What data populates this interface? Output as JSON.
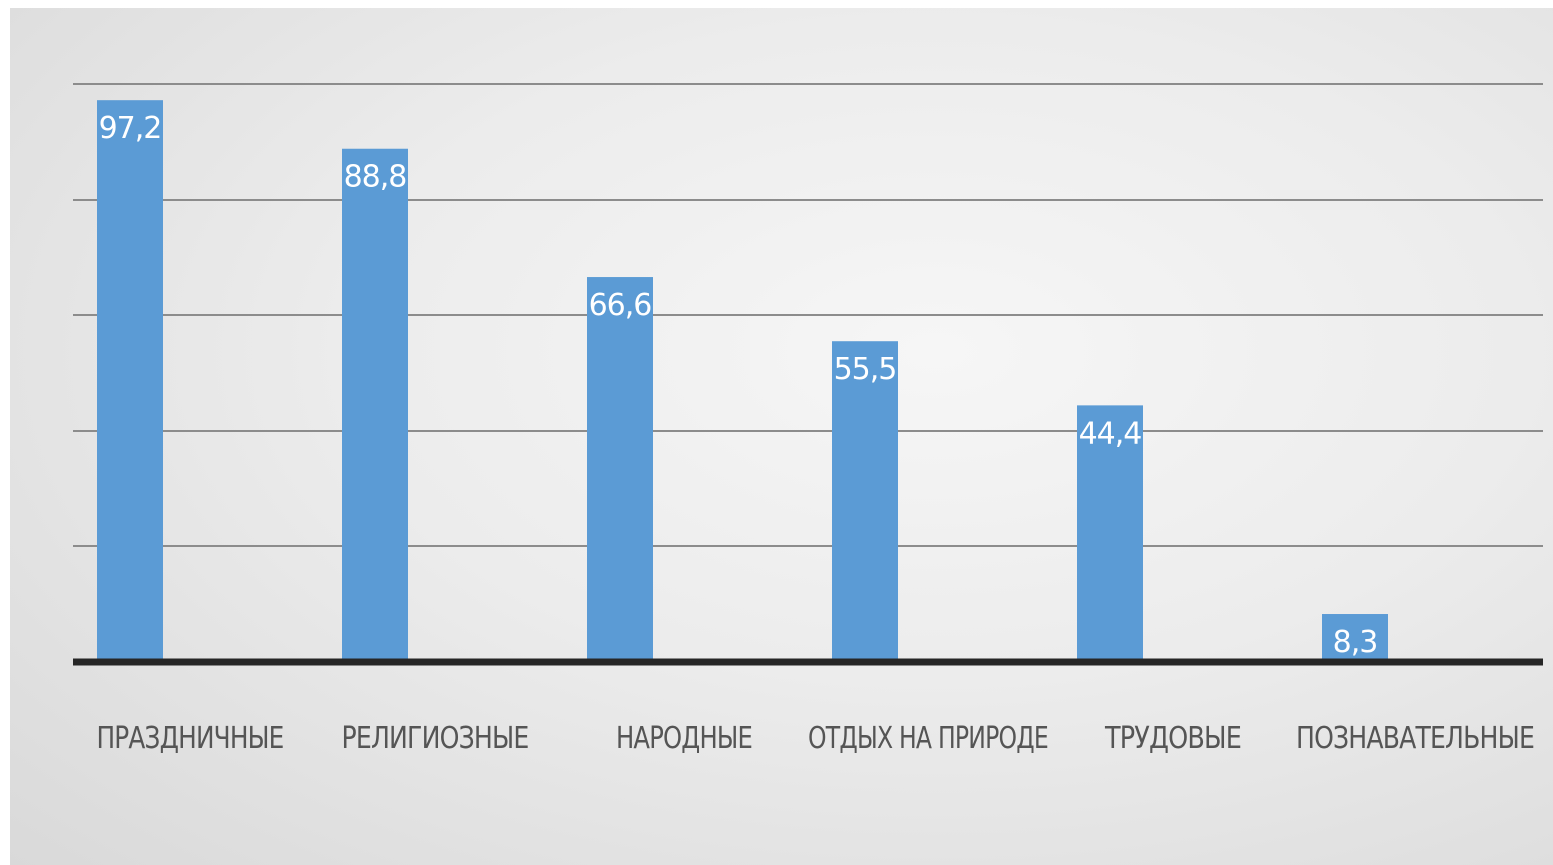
{
  "chart_data": {
    "type": "bar",
    "categories": [
      "ПРАЗДНИЧНЫЕ",
      "РЕЛИГИОЗНЫЕ",
      "НАРОДНЫЕ",
      "ОТДЫХ НА ПРИРОДЕ",
      "ТРУДОВЫЕ",
      "ПОЗНАВАТЕЛЬНЫЕ"
    ],
    "values": [
      97.2,
      88.8,
      66.6,
      55.5,
      44.4,
      8.3
    ],
    "value_labels": [
      "97,2",
      "88,8",
      "66,6",
      "55,5",
      "44,4",
      "8,3"
    ],
    "ylim": [
      0,
      100
    ],
    "grid": true,
    "bar_color": "#5b9bd5",
    "axis_color": "#262626",
    "grid_color": "#8c8c8c",
    "label_color": "#ffffff",
    "category_color": "#555555"
  }
}
